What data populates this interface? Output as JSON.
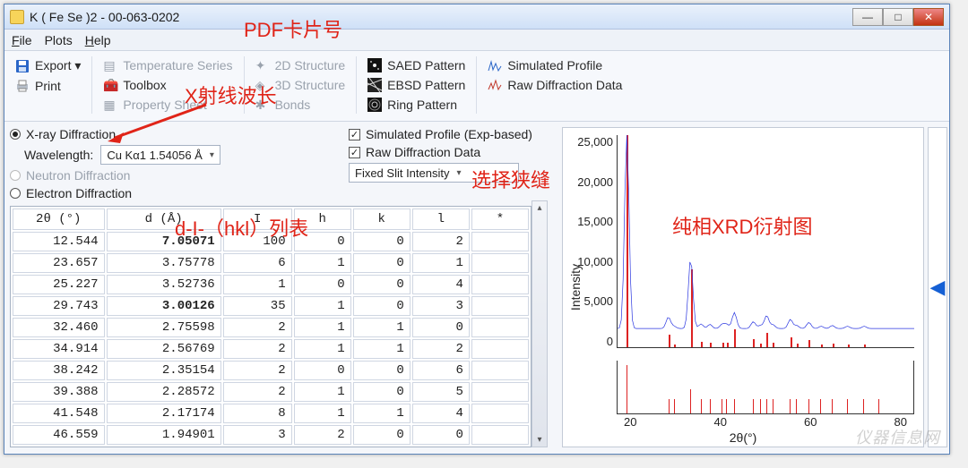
{
  "window": {
    "title": "K ( Fe Se )2 - 00-063-0202"
  },
  "menu": {
    "file": "File",
    "plots": "Plots",
    "help": "Help"
  },
  "toolbar": {
    "export": "Export ▾",
    "print": "Print",
    "tempSeries": "Temperature Series",
    "toolbox": "Toolbox",
    "propSheet": "Property Sheet",
    "s2d": "2D Structure",
    "s3d": "3D Structure",
    "bonds": "Bonds",
    "saed": "SAED Pattern",
    "ebsd": "EBSD Pattern",
    "ring": "Ring Pattern",
    "simProf": "Simulated Profile",
    "rawDiff": "Raw Diffraction Data"
  },
  "options": {
    "xray": "X-ray Diffraction",
    "wavelengthLabel": "Wavelength:",
    "wavelengthValue": "Cu Kα1 1.54056 Å",
    "neutron": "Neutron Diffraction",
    "electron": "Electron Diffraction",
    "simProfExp": "Simulated Profile (Exp-based)",
    "rawData": "Raw Diffraction Data",
    "slit": "Fixed Slit Intensity"
  },
  "columns": [
    "2θ (°)",
    "d (Å)",
    "I",
    "h",
    "k",
    "l",
    "*"
  ],
  "rows": [
    {
      "tt": "12.544",
      "d": "7.05071",
      "bold": true,
      "I": "100",
      "h": "0",
      "k": "0",
      "l": "2"
    },
    {
      "tt": "23.657",
      "d": "3.75778",
      "I": "6",
      "h": "1",
      "k": "0",
      "l": "1"
    },
    {
      "tt": "25.227",
      "d": "3.52736",
      "I": "1",
      "h": "0",
      "k": "0",
      "l": "4"
    },
    {
      "tt": "29.743",
      "d": "3.00126",
      "bold": true,
      "I": "35",
      "h": "1",
      "k": "0",
      "l": "3"
    },
    {
      "tt": "32.460",
      "d": "2.75598",
      "I": "2",
      "h": "1",
      "k": "1",
      "l": "0"
    },
    {
      "tt": "34.914",
      "d": "2.56769",
      "I": "2",
      "h": "1",
      "k": "1",
      "l": "2"
    },
    {
      "tt": "38.242",
      "d": "2.35154",
      "I": "2",
      "h": "0",
      "k": "0",
      "l": "6"
    },
    {
      "tt": "39.388",
      "d": "2.28572",
      "I": "2",
      "h": "1",
      "k": "0",
      "l": "5"
    },
    {
      "tt": "41.548",
      "d": "2.17174",
      "I": "8",
      "h": "1",
      "k": "1",
      "l": "4"
    },
    {
      "tt": "46.559",
      "d": "1.94901",
      "I": "3",
      "h": "2",
      "k": "0",
      "l": "0"
    }
  ],
  "chart": {
    "ylabel": "Intensity",
    "xlabel": "2θ(°)",
    "ylim": [
      0,
      25000
    ],
    "xlim": [
      10,
      90
    ],
    "yticks": [
      "25,000",
      "20,000",
      "15,000",
      "10,000",
      "5,000",
      "0"
    ],
    "xticks": [
      "20",
      "40",
      "60",
      "80"
    ],
    "bg": "#ffffff",
    "border": "#333333",
    "red": "#d41e13",
    "blue": "#2a36e0",
    "baselineBlueY": 2200,
    "redPeaks": [
      {
        "tt": 12.5,
        "I": 25600
      },
      {
        "tt": 23.7,
        "I": 1500
      },
      {
        "tt": 25.2,
        "I": 300
      },
      {
        "tt": 29.7,
        "I": 9200
      },
      {
        "tt": 32.5,
        "I": 600
      },
      {
        "tt": 34.9,
        "I": 550
      },
      {
        "tt": 38.2,
        "I": 550
      },
      {
        "tt": 39.4,
        "I": 550
      },
      {
        "tt": 41.5,
        "I": 2100
      },
      {
        "tt": 46.6,
        "I": 900
      },
      {
        "tt": 48.5,
        "I": 400
      },
      {
        "tt": 50.2,
        "I": 1700
      },
      {
        "tt": 51.9,
        "I": 500
      },
      {
        "tt": 56.6,
        "I": 1200
      },
      {
        "tt": 58.3,
        "I": 400
      },
      {
        "tt": 61.6,
        "I": 800
      },
      {
        "tt": 64.9,
        "I": 300
      },
      {
        "tt": 67.9,
        "I": 400
      },
      {
        "tt": 72.0,
        "I": 300
      },
      {
        "tt": 76.5,
        "I": 300
      }
    ],
    "stripTicks": [
      12.5,
      23.7,
      25.2,
      29.7,
      32.5,
      34.9,
      38.2,
      39.4,
      41.5,
      46.6,
      48.5,
      50.2,
      51.9,
      56.6,
      58.3,
      61.6,
      64.9,
      67.9,
      72.0,
      76.5,
      80.5
    ]
  },
  "annotations": {
    "pdfCard": "PDF卡片号",
    "wavelength": "X射线波长",
    "dIhkl": "d-I-（hkl）列表",
    "slit": "选择狭缝",
    "pureXRD": "纯相XRD衍射图"
  },
  "watermark": "仪器信息网"
}
